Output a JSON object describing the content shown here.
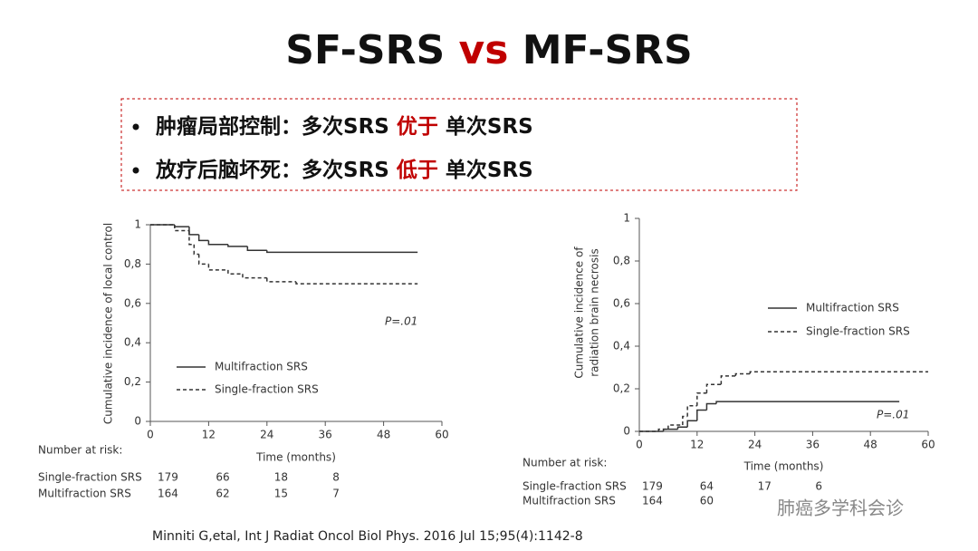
{
  "title": {
    "parts": [
      "SF-SRS",
      "vs",
      "MF-SRS"
    ]
  },
  "bullets": [
    {
      "parts": [
        "肿瘤局部控制：多次SRS",
        "优于",
        "单次SRS"
      ]
    },
    {
      "parts": [
        "放疗后脑坏死：多次SRS",
        "低于",
        "单次SRS"
      ]
    }
  ],
  "chart_data": [
    {
      "type": "line",
      "step": true,
      "ylabel": [
        "Cumulative incidence of local control"
      ],
      "xlabel": "Time (months)",
      "xlim": [
        0,
        60
      ],
      "xticks": [
        0,
        12,
        24,
        36,
        48,
        60
      ],
      "ylim": [
        0,
        1
      ],
      "yticks": [
        0,
        {
          "value": 0.2,
          "label": "0,2"
        },
        {
          "value": 0.4,
          "label": "0,4"
        },
        {
          "value": 0.6,
          "label": "0,6"
        },
        {
          "value": 0.8,
          "label": "0,8"
        },
        1
      ],
      "annotation": "P=.01",
      "series": [
        {
          "name": "Multifraction SRS",
          "color": "#333333",
          "dash": false,
          "x": [
            0,
            5,
            8,
            10,
            12,
            16,
            20,
            24,
            55
          ],
          "values": [
            1,
            0.99,
            0.95,
            0.92,
            0.9,
            0.89,
            0.87,
            0.86,
            0.86
          ]
        },
        {
          "name": "Single-fraction SRS",
          "color": "#333333",
          "dash": true,
          "x": [
            0,
            5,
            8,
            9,
            10,
            12,
            16,
            19,
            24,
            30,
            55
          ],
          "values": [
            1,
            0.97,
            0.9,
            0.85,
            0.8,
            0.77,
            0.75,
            0.73,
            0.71,
            0.7,
            0.7
          ]
        }
      ],
      "risk": {
        "label": "Number at risk:",
        "rows": [
          {
            "name": "Single-fraction SRS",
            "values": [
              179,
              66,
              18,
              8
            ]
          },
          {
            "name": "Multifraction SRS",
            "values": [
              164,
              62,
              15,
              7
            ]
          }
        ]
      }
    },
    {
      "type": "line",
      "step": true,
      "ylabel": [
        "Cumulative incidence of",
        "radiation brain necrosis"
      ],
      "xlabel": "Time (months)",
      "xlim": [
        0,
        60
      ],
      "xticks": [
        0,
        12,
        24,
        36,
        48,
        60
      ],
      "ylim": [
        0,
        1
      ],
      "yticks": [
        0,
        {
          "value": 0.2,
          "label": "0,2"
        },
        {
          "value": 0.4,
          "label": "0,4"
        },
        {
          "value": 0.6,
          "label": "0,6"
        },
        {
          "value": 0.8,
          "label": "0,8"
        },
        1
      ],
      "annotation": "P=.01",
      "series": [
        {
          "name": "Multifraction SRS",
          "color": "#333333",
          "dash": false,
          "x": [
            0,
            5,
            8,
            10,
            12,
            14,
            16,
            54
          ],
          "values": [
            0,
            0.01,
            0.02,
            0.05,
            0.1,
            0.13,
            0.14,
            0.14
          ]
        },
        {
          "name": "Single-fraction SRS",
          "color": "#333333",
          "dash": true,
          "x": [
            0,
            4,
            6,
            9,
            10,
            12,
            14,
            17,
            20,
            23,
            60
          ],
          "values": [
            0,
            0.01,
            0.03,
            0.07,
            0.12,
            0.18,
            0.22,
            0.26,
            0.27,
            0.28,
            0.28
          ]
        }
      ],
      "risk": {
        "label": "Number at risk:",
        "rows": [
          {
            "name": "Single-fraction SRS",
            "values": [
              179,
              64,
              17,
              6
            ]
          },
          {
            "name": "Multifraction SRS",
            "values": [
              164,
              60
            ]
          }
        ]
      }
    }
  ],
  "citation": "Minniti G,etal, Int J Radiat Oncol Biol Phys. 2016 Jul 15;95(4):1142-8",
  "watermark": "肺癌多学科会诊"
}
